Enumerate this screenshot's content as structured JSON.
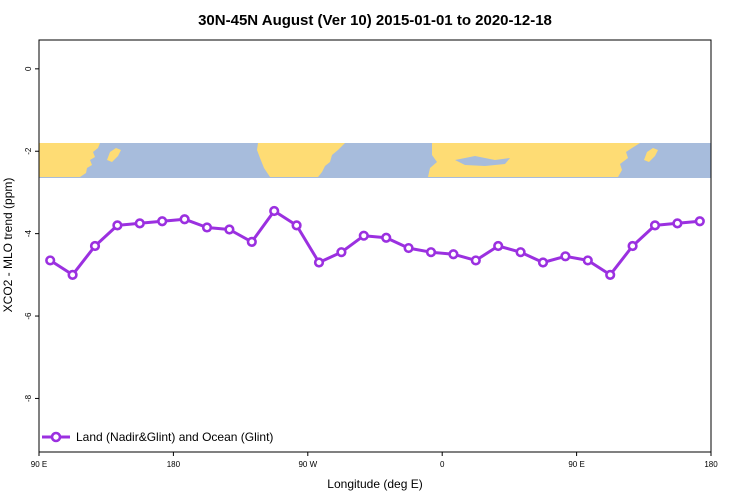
{
  "chart_data": {
    "type": "line",
    "title": "30N-45N August (Ver 10)   2015-01-01 to 2020-12-18",
    "xlabel": "Longitude (deg E)",
    "ylabel": "XCO2 - MLO trend (ppm)",
    "x_tick_labels": [
      "90 E",
      "180",
      "90 W",
      "0",
      "90 E",
      "180"
    ],
    "x_tick_values": [
      90,
      180,
      270,
      360,
      450,
      540
    ],
    "xlim": [
      90,
      540
    ],
    "y_tick_labels": [
      "0",
      "-2",
      "-4",
      "-6",
      "-8"
    ],
    "y_tick_values": [
      0,
      -2,
      -4,
      -6,
      -8
    ],
    "ylim": [
      -9.3,
      0.7
    ],
    "map_band_range": [
      -1.8,
      -2.65
    ],
    "colors": {
      "series": "#9b30e0",
      "land": "#fedc74",
      "ocean": "#a7bcdc"
    },
    "legend": {
      "label": "Land (Nadir&Glint) and Ocean (Glint)",
      "position": "bottom-left"
    },
    "series": [
      {
        "name": "Land (Nadir&Glint) and Ocean (Glint)",
        "x": [
          97.5,
          112.5,
          127.5,
          142.5,
          157.5,
          172.5,
          187.5,
          202.5,
          217.5,
          232.5,
          247.5,
          262.5,
          277.5,
          292.5,
          307.5,
          322.5,
          337.5,
          352.5,
          367.5,
          382.5,
          397.5,
          412.5,
          427.5,
          442.5,
          457.5,
          472.5,
          487.5,
          502.5,
          517.5,
          532.5
        ],
        "y": [
          -4.65,
          -5.0,
          -4.3,
          -3.8,
          -3.75,
          -3.7,
          -3.65,
          -3.85,
          -3.9,
          -4.2,
          -3.45,
          -3.8,
          -4.7,
          -4.45,
          -4.05,
          -4.1,
          -4.35,
          -4.45,
          -4.5,
          -4.65,
          -4.3,
          -4.45,
          -4.7,
          -4.55,
          -4.65,
          -5.0,
          -4.3,
          -3.8,
          -3.75,
          -3.7
        ]
      }
    ]
  }
}
